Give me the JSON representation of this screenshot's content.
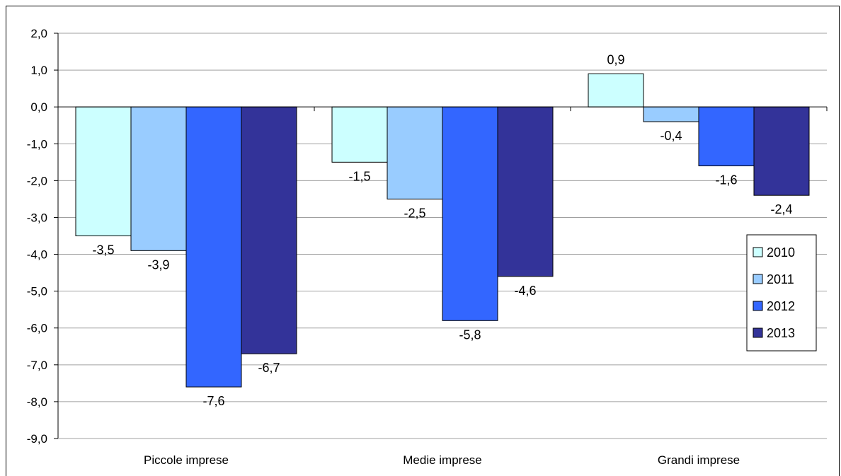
{
  "chart_data": {
    "type": "bar",
    "categories": [
      "Piccole imprese",
      "Medie imprese",
      "Grandi imprese"
    ],
    "series": [
      {
        "name": "2010",
        "values": [
          -3.5,
          -1.5,
          0.9
        ],
        "labels": [
          "-3,5",
          "-1,5",
          "0,9"
        ],
        "color": "#CCFFFF"
      },
      {
        "name": "2011",
        "values": [
          -3.9,
          -2.5,
          -0.4
        ],
        "labels": [
          "-3,9",
          "-2,5",
          "-0,4"
        ],
        "color": "#99CCFF"
      },
      {
        "name": "2012",
        "values": [
          -7.6,
          -5.8,
          -1.6
        ],
        "labels": [
          "-7,6",
          "-5,8",
          "-1,6"
        ],
        "color": "#3366FF"
      },
      {
        "name": "2013",
        "values": [
          -6.7,
          -4.6,
          -2.4
        ],
        "labels": [
          "-6,7",
          "-4,6",
          "-2,4"
        ],
        "color": "#333399"
      }
    ],
    "ylim": [
      -9.0,
      2.0
    ],
    "yticks": [
      2.0,
      1.0,
      0.0,
      -1.0,
      -2.0,
      -3.0,
      -4.0,
      -5.0,
      -6.0,
      -7.0,
      -8.0,
      -9.0
    ],
    "ytick_labels": [
      "2,0",
      "1,0",
      "0,0",
      "-1,0",
      "-2,0",
      "-3,0",
      "-4,0",
      "-5,0",
      "-6,0",
      "-7,0",
      "-8,0",
      "-9,0"
    ],
    "grid": true,
    "legend_position": "right",
    "title": "",
    "xlabel": "",
    "ylabel": ""
  }
}
